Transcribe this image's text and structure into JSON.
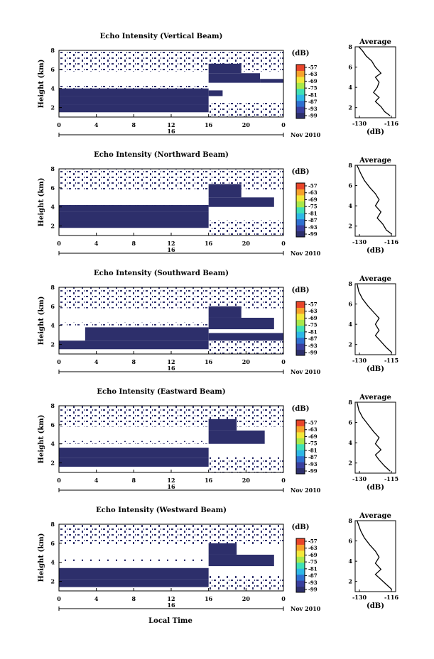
{
  "figure": {
    "xlabel": "Local Time",
    "date_label": "16",
    "month_year_label": "Nov 2010",
    "colorbar_unit": "(dB)",
    "colorbar_ticks": [
      "-57",
      "-63",
      "-69",
      "-75",
      "-81",
      "-87",
      "-93",
      "-99"
    ],
    "colorscale": [
      "#2d2f6b",
      "#3a3f9e",
      "#2f6fd0",
      "#2eb7e6",
      "#3fe0b5",
      "#a8e84a",
      "#f2e83a",
      "#f6a22b",
      "#e8452a"
    ],
    "average_title": "Average",
    "average_xlabel": "(dB)"
  },
  "chart_data": [
    {
      "type": "heatmap",
      "title": "Echo Intensity (Vertical Beam)",
      "ylabel": "Height (km)",
      "xticks": [
        "0",
        "4",
        "8",
        "12",
        "16",
        "20",
        "0"
      ],
      "yticks": [
        "2",
        "4",
        "6",
        "8"
      ],
      "xlim": [
        0,
        24
      ],
      "ylim": [
        1,
        8
      ],
      "cells": [
        {
          "x": [
            0,
            16
          ],
          "y": [
            1.5,
            2.3
          ]
        },
        {
          "x": [
            0,
            16
          ],
          "y": [
            2.3,
            3.2
          ]
        },
        {
          "x": [
            0,
            16
          ],
          "y": [
            3.2,
            4.0
          ]
        },
        {
          "x": [
            16,
            17.5
          ],
          "y": [
            3.2,
            3.8
          ]
        },
        {
          "x": [
            16,
            21.5
          ],
          "y": [
            4.6,
            5.6
          ]
        },
        {
          "x": [
            16,
            19.5
          ],
          "y": [
            5.6,
            6.6
          ]
        },
        {
          "x": [
            21.5,
            24
          ],
          "y": [
            4.6,
            5.0
          ]
        }
      ],
      "average": {
        "xticks": [
          "-130",
          "-116"
        ],
        "yticks": [
          "2",
          "4",
          "6",
          "8"
        ],
        "xlim": [
          -132,
          -110
        ],
        "profile": [
          [
            -113,
            1.2
          ],
          [
            -116,
            1.6
          ],
          [
            -118,
            2.1
          ],
          [
            -121,
            2.6
          ],
          [
            -119,
            3.0
          ],
          [
            -122,
            3.5
          ],
          [
            -120,
            4.0
          ],
          [
            -119,
            4.5
          ],
          [
            -121,
            5.0
          ],
          [
            -118,
            5.4
          ],
          [
            -121,
            6.0
          ],
          [
            -123,
            6.6
          ],
          [
            -126,
            7.1
          ],
          [
            -128,
            7.6
          ],
          [
            -130,
            8.0
          ]
        ]
      }
    },
    {
      "type": "heatmap",
      "title": "Echo Intensity (Northward Beam)",
      "ylabel": "Height (km)",
      "xticks": [
        "0",
        "4",
        "8",
        "12",
        "16",
        "20",
        "0"
      ],
      "yticks": [
        "2",
        "4",
        "6",
        "8"
      ],
      "xlim": [
        0,
        24
      ],
      "ylim": [
        1,
        8
      ],
      "cells": [
        {
          "x": [
            0,
            16
          ],
          "y": [
            1.8,
            2.6
          ]
        },
        {
          "x": [
            0,
            16
          ],
          "y": [
            2.6,
            3.5
          ]
        },
        {
          "x": [
            0,
            16
          ],
          "y": [
            3.5,
            4.2
          ]
        },
        {
          "x": [
            16,
            23
          ],
          "y": [
            4.0,
            5.0
          ]
        },
        {
          "x": [
            16,
            19.5
          ],
          "y": [
            5.0,
            6.4
          ]
        }
      ],
      "average": {
        "xticks": [
          "-130",
          "-116"
        ],
        "yticks": [
          "2",
          "4",
          "6",
          "8"
        ],
        "xlim": [
          -132,
          -110
        ],
        "profile": [
          [
            -112,
            1.2
          ],
          [
            -115,
            1.6
          ],
          [
            -117,
            2.2
          ],
          [
            -120,
            2.8
          ],
          [
            -118,
            3.4
          ],
          [
            -121,
            4.0
          ],
          [
            -119,
            4.6
          ],
          [
            -121,
            5.2
          ],
          [
            -124,
            5.8
          ],
          [
            -127,
            6.5
          ],
          [
            -129,
            7.2
          ],
          [
            -131,
            8.0
          ]
        ]
      }
    },
    {
      "type": "heatmap",
      "title": "Echo Intensity (Southward Beam)",
      "ylabel": "Height (km)",
      "xticks": [
        "0",
        "4",
        "8",
        "12",
        "16",
        "20",
        "0"
      ],
      "yticks": [
        "2",
        "4",
        "6",
        "8"
      ],
      "xlim": [
        0,
        24
      ],
      "ylim": [
        1,
        8
      ],
      "cells": [
        {
          "x": [
            0,
            16
          ],
          "y": [
            1.5,
            2.4
          ]
        },
        {
          "x": [
            2.8,
            16
          ],
          "y": [
            2.4,
            3.8
          ]
        },
        {
          "x": [
            16,
            24
          ],
          "y": [
            2.4,
            3.2
          ]
        },
        {
          "x": [
            16,
            23
          ],
          "y": [
            3.6,
            4.8
          ]
        },
        {
          "x": [
            16,
            19.5
          ],
          "y": [
            4.8,
            6.0
          ]
        }
      ],
      "average": {
        "xticks": [
          "-130",
          "-115"
        ],
        "yticks": [
          "2",
          "4",
          "6",
          "8"
        ],
        "xlim": [
          -132,
          -110
        ],
        "profile": [
          [
            -112,
            1.2
          ],
          [
            -115,
            1.7
          ],
          [
            -118,
            2.3
          ],
          [
            -121,
            2.9
          ],
          [
            -119,
            3.4
          ],
          [
            -121,
            4.0
          ],
          [
            -119,
            4.6
          ],
          [
            -122,
            5.2
          ],
          [
            -125,
            5.8
          ],
          [
            -128,
            6.5
          ],
          [
            -130,
            7.2
          ],
          [
            -131,
            8.0
          ]
        ]
      }
    },
    {
      "type": "heatmap",
      "title": "Echo Intensity (Eastward Beam)",
      "ylabel": "Height (km)",
      "xticks": [
        "0",
        "4",
        "8",
        "12",
        "16",
        "20",
        "0"
      ],
      "yticks": [
        "2",
        "4",
        "6",
        "8"
      ],
      "xlim": [
        0,
        24
      ],
      "ylim": [
        1,
        8
      ],
      "cells": [
        {
          "x": [
            0,
            16
          ],
          "y": [
            1.6,
            2.5
          ]
        },
        {
          "x": [
            0,
            16
          ],
          "y": [
            2.5,
            3.6
          ]
        },
        {
          "x": [
            16,
            22
          ],
          "y": [
            4.0,
            5.4
          ]
        },
        {
          "x": [
            16,
            19
          ],
          "y": [
            5.4,
            6.6
          ]
        }
      ],
      "average": {
        "xticks": [
          "-130",
          "-115"
        ],
        "yticks": [
          "2",
          "4",
          "6",
          "8"
        ],
        "xlim": [
          -132,
          -110
        ],
        "profile": [
          [
            -113,
            1.2
          ],
          [
            -116,
            1.7
          ],
          [
            -119,
            2.3
          ],
          [
            -121,
            2.8
          ],
          [
            -118,
            3.3
          ],
          [
            -121,
            3.9
          ],
          [
            -119,
            4.5
          ],
          [
            -122,
            5.1
          ],
          [
            -125,
            5.8
          ],
          [
            -128,
            6.5
          ],
          [
            -130,
            7.2
          ],
          [
            -131,
            8.0
          ]
        ]
      }
    },
    {
      "type": "heatmap",
      "title": "Echo Intensity (Westward Beam)",
      "ylabel": "Height (km)",
      "xticks": [
        "0",
        "4",
        "8",
        "12",
        "16",
        "20",
        "0"
      ],
      "yticks": [
        "2",
        "4",
        "6",
        "8"
      ],
      "xlim": [
        0,
        24
      ],
      "ylim": [
        1,
        8
      ],
      "cells": [
        {
          "x": [
            0,
            16
          ],
          "y": [
            1.4,
            2.2
          ]
        },
        {
          "x": [
            0,
            16
          ],
          "y": [
            2.2,
            3.4
          ]
        },
        {
          "x": [
            16,
            23
          ],
          "y": [
            3.6,
            4.8
          ]
        },
        {
          "x": [
            16,
            19
          ],
          "y": [
            4.8,
            6.0
          ]
        }
      ],
      "average": {
        "xticks": [
          "-130",
          "-116"
        ],
        "yticks": [
          "2",
          "4",
          "6",
          "8"
        ],
        "xlim": [
          -132,
          -110
        ],
        "profile": [
          [
            -112,
            1.2
          ],
          [
            -115,
            1.7
          ],
          [
            -118,
            2.2
          ],
          [
            -121,
            2.7
          ],
          [
            -118,
            3.2
          ],
          [
            -121,
            3.8
          ],
          [
            -119,
            4.4
          ],
          [
            -121,
            5.0
          ],
          [
            -124,
            5.6
          ],
          [
            -127,
            6.3
          ],
          [
            -129,
            7.0
          ],
          [
            -131,
            8.0
          ]
        ]
      }
    }
  ]
}
